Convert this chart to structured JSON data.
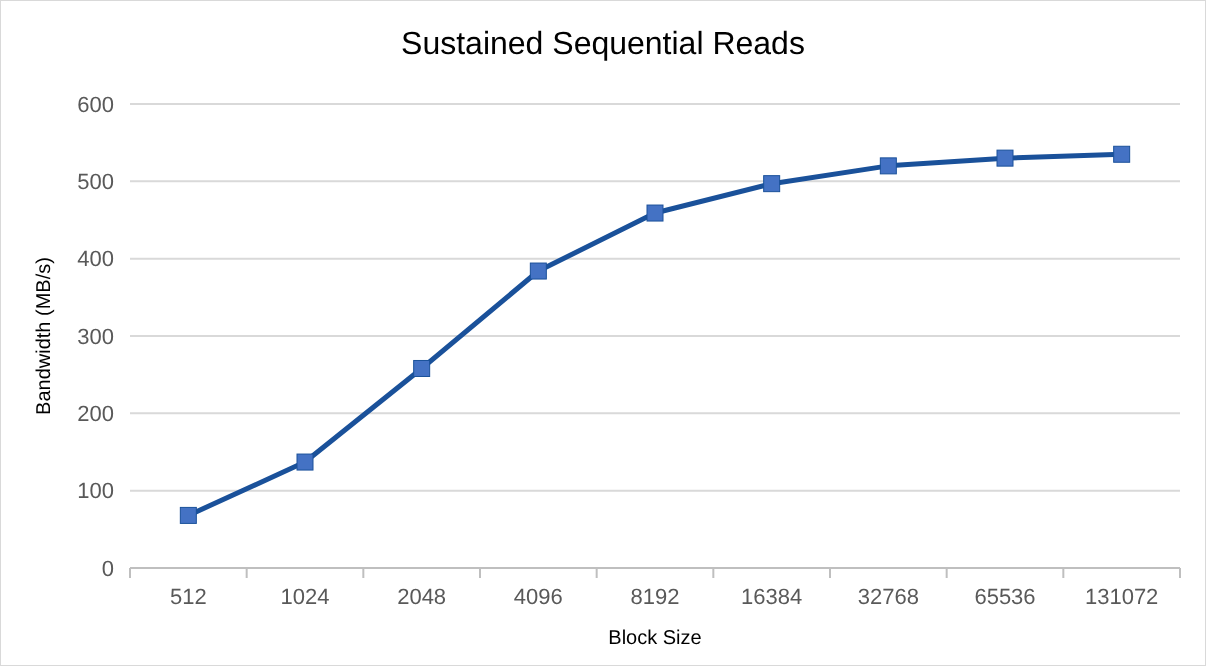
{
  "chart_data": {
    "type": "line",
    "title": "Sustained Sequential Reads",
    "xlabel": "Block Size",
    "ylabel": "Bandwidth (MB/s)",
    "categories": [
      "512",
      "1024",
      "2048",
      "4096",
      "8192",
      "16384",
      "32768",
      "65536",
      "131072"
    ],
    "series": [
      {
        "color": "#1a519a",
        "values": [
          68,
          137,
          258,
          384,
          459,
          497,
          520,
          530,
          535
        ]
      }
    ],
    "ylim": [
      0,
      600
    ],
    "yticks": [
      0,
      100,
      200,
      300,
      400,
      500,
      600
    ],
    "grid": "y",
    "marker": "square",
    "line_style": "solid"
  }
}
